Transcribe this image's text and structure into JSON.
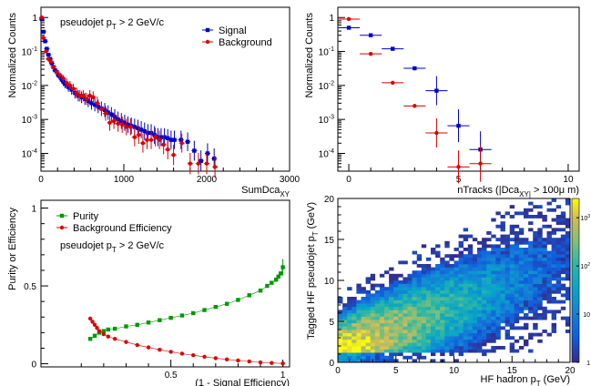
{
  "chart_data": [
    {
      "type": "scatter",
      "panel": "top-left",
      "title": "",
      "annotation": "pseudojet p_T > 2 GeV/c",
      "xlabel": "SumDca_XY",
      "ylabel": "Normalized Counts",
      "xlim": [
        0,
        3000
      ],
      "ylim": [
        3e-05,
        2
      ],
      "yscale": "log",
      "xticks": [
        "0",
        "1000",
        "2000",
        "3000"
      ],
      "yticks": [
        "10^-4",
        "10^-3",
        "10^-2",
        "10^-1",
        "1"
      ],
      "legend_position": "top-right",
      "series": [
        {
          "name": "Signal",
          "color": "#0000cc",
          "marker": "square",
          "x": [
            10,
            30,
            50,
            70,
            90,
            110,
            130,
            150,
            170,
            190,
            210,
            230,
            250,
            270,
            290,
            330,
            370,
            410,
            450,
            490,
            530,
            570,
            610,
            650,
            690,
            730,
            770,
            810,
            850,
            890,
            930,
            970,
            1010,
            1050,
            1090,
            1130,
            1170,
            1210,
            1250,
            1290,
            1330,
            1370,
            1410,
            1450,
            1490,
            1530,
            1570,
            1610,
            1690,
            1770,
            1850,
            1930,
            2010,
            2090
          ],
          "y": [
            0.9,
            0.38,
            0.2,
            0.12,
            0.08,
            0.06,
            0.045,
            0.035,
            0.028,
            0.025,
            0.02,
            0.018,
            0.015,
            0.013,
            0.011,
            0.009,
            0.0075,
            0.006,
            0.005,
            0.0045,
            0.004,
            0.0035,
            0.003,
            0.0027,
            0.0024,
            0.0021,
            0.0019,
            0.0016,
            0.0014,
            0.0012,
            0.001,
            0.0009,
            0.0008,
            0.0007,
            0.00065,
            0.0006,
            0.00055,
            0.0005,
            0.00045,
            0.0004,
            0.0004,
            0.00035,
            0.0003,
            0.0003,
            0.0003,
            0.00028,
            0.00025,
            0.00025,
            0.00025,
            0.00022,
            0.00012,
            6e-05,
            0.0001,
            7e-05
          ]
        },
        {
          "name": "Background",
          "color": "#dd0000",
          "marker": "circle",
          "x": [
            10,
            30,
            60,
            90,
            120,
            150,
            190,
            230,
            270,
            310,
            350,
            390,
            430,
            470,
            510,
            550,
            590,
            630,
            680,
            730,
            780,
            830,
            880,
            930,
            980,
            1030,
            1080,
            1130,
            1180,
            1230,
            1280,
            1330,
            1380,
            1430,
            1480,
            1530,
            1600,
            1700,
            1800,
            1900,
            2000,
            2100
          ],
          "y": [
            1.0,
            0.25,
            0.1,
            0.06,
            0.05,
            0.035,
            0.025,
            0.02,
            0.016,
            0.012,
            0.01,
            0.008,
            0.006,
            0.005,
            0.005,
            0.004,
            0.005,
            0.0045,
            0.003,
            0.002,
            0.0015,
            0.0008,
            0.0009,
            0.00075,
            0.0007,
            0.0006,
            0.0006,
            0.0003,
            0.00035,
            0.0002,
            0.00025,
            0.00025,
            0.0003,
            0.00025,
            0.00018,
            0.00013,
            9e-05,
            0.0002,
            5e-05,
            5e-05,
            5e-05,
            4e-05
          ]
        }
      ]
    },
    {
      "type": "scatter",
      "panel": "top-right",
      "title": "",
      "xlabel": "nTracks (|Dca_XY| > 100μ m)",
      "ylabel": "Normalized Counts",
      "xlim": [
        -0.5,
        10.5
      ],
      "ylim": [
        3e-05,
        2
      ],
      "yscale": "log",
      "xticks": [
        "0",
        "5",
        "10"
      ],
      "yticks": [
        "10^-4",
        "10^-3",
        "10^-2",
        "10^-1",
        "1"
      ],
      "series": [
        {
          "name": "Signal",
          "color": "#0000cc",
          "marker": "square",
          "x": [
            0,
            1,
            2,
            3,
            4,
            5,
            6
          ],
          "y": [
            0.5,
            0.3,
            0.12,
            0.032,
            0.007,
            0.00065,
            0.00013
          ]
        },
        {
          "name": "Background",
          "color": "#dd0000",
          "marker": "circle",
          "x": [
            0,
            1,
            2,
            3,
            4,
            5,
            6
          ],
          "y": [
            0.9,
            0.085,
            0.012,
            0.0025,
            0.0004,
            4e-05,
            5e-05
          ]
        }
      ]
    },
    {
      "type": "line",
      "panel": "bottom-left",
      "title": "",
      "annotation": "pseudojet p_T > 2 GeV/c",
      "xlabel": "(1 - Signal Efficiency)",
      "ylabel": "Purity or Efficiency",
      "xlim": [
        -0.08,
        1.03
      ],
      "ylim": [
        -0.02,
        1.05
      ],
      "xticks": [
        "0.5",
        "1"
      ],
      "yticks": [
        "0",
        "0.5",
        "1"
      ],
      "legend_position": "top-left",
      "series": [
        {
          "name": "Purity",
          "color": "#009900",
          "marker": "square",
          "x": [
            0.14,
            0.16,
            0.18,
            0.2,
            0.22,
            0.25,
            0.3,
            0.35,
            0.4,
            0.45,
            0.5,
            0.55,
            0.6,
            0.65,
            0.7,
            0.75,
            0.8,
            0.85,
            0.9,
            0.93,
            0.95,
            0.97,
            0.98,
            0.99,
            1.0
          ],
          "y": [
            0.16,
            0.18,
            0.2,
            0.21,
            0.22,
            0.225,
            0.24,
            0.25,
            0.265,
            0.28,
            0.295,
            0.31,
            0.325,
            0.345,
            0.365,
            0.385,
            0.41,
            0.44,
            0.47,
            0.5,
            0.52,
            0.54,
            0.56,
            0.58,
            0.62
          ]
        },
        {
          "name": "Background Efficiency",
          "color": "#dd0000",
          "marker": "circle",
          "x": [
            0.14,
            0.15,
            0.16,
            0.17,
            0.18,
            0.2,
            0.22,
            0.25,
            0.3,
            0.35,
            0.4,
            0.45,
            0.5,
            0.55,
            0.6,
            0.65,
            0.7,
            0.75,
            0.8,
            0.85,
            0.9,
            0.95,
            1.0
          ],
          "y": [
            0.29,
            0.27,
            0.25,
            0.23,
            0.21,
            0.19,
            0.175,
            0.16,
            0.14,
            0.12,
            0.105,
            0.09,
            0.077,
            0.065,
            0.055,
            0.045,
            0.036,
            0.028,
            0.021,
            0.015,
            0.009,
            0.005,
            0.002
          ]
        }
      ]
    },
    {
      "type": "heatmap",
      "panel": "bottom-right",
      "title": "",
      "xlabel": "HF hadron p_T (GeV)",
      "ylabel": "Tagged HF pseudojet p_T (GeV)",
      "xlim": [
        0,
        20
      ],
      "ylim": [
        0,
        20
      ],
      "xticks": [
        "0",
        "5",
        "10",
        "15",
        "20"
      ],
      "yticks": [
        "0",
        "5",
        "10",
        "15",
        "20"
      ],
      "zscale": "log",
      "zticks": [
        "1",
        "10",
        "10^2",
        "10^3"
      ],
      "colormap": "kBird"
    }
  ]
}
